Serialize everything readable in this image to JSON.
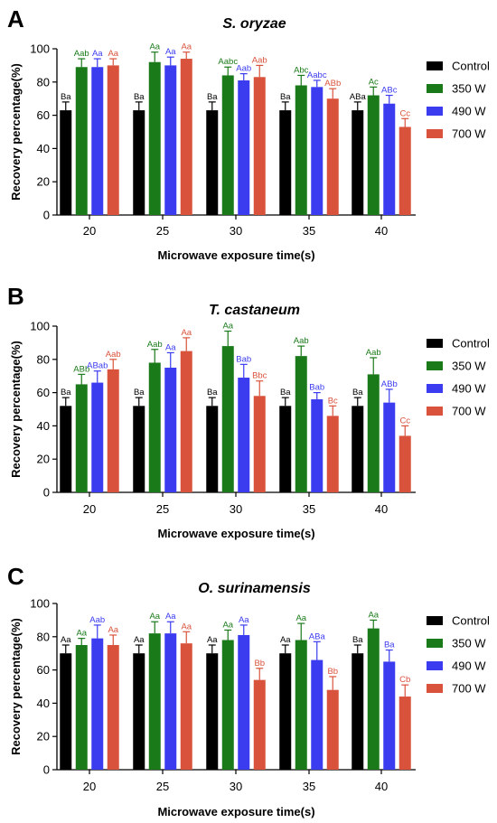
{
  "chart_data": [
    {
      "panel": "A",
      "type": "bar",
      "title": "S. oryzae",
      "xlabel": "Microwave exposure time(s)",
      "ylabel": "Recovery percentage(%)",
      "ylim": [
        0,
        100
      ],
      "yticks": [
        0,
        20,
        40,
        60,
        80,
        100
      ],
      "categories": [
        "20",
        "25",
        "30",
        "35",
        "40"
      ],
      "legend_position": "right",
      "series": [
        {
          "name": "Control",
          "color": "#000000",
          "values": [
            63,
            63,
            63,
            63,
            63
          ],
          "errors": [
            5,
            5,
            5,
            5,
            5
          ],
          "labels": [
            "Ba",
            "Ba",
            "Ba",
            "Ba",
            "ABa"
          ]
        },
        {
          "name": "350 W",
          "color": "#1a7a1a",
          "values": [
            89,
            92,
            84,
            78,
            72
          ],
          "errors": [
            5,
            6,
            5,
            6,
            5
          ],
          "labels": [
            "Aab",
            "Aa",
            "Aabc",
            "Abc",
            "Ac"
          ]
        },
        {
          "name": "490 W",
          "color": "#3b3bf0",
          "values": [
            89,
            90,
            81,
            77,
            67
          ],
          "errors": [
            5,
            5,
            4,
            4,
            5
          ],
          "labels": [
            "Aa",
            "Aa",
            "Aab",
            "Aabc",
            "ABc"
          ]
        },
        {
          "name": "700 W",
          "color": "#d9533c",
          "values": [
            90,
            94,
            83,
            70,
            53
          ],
          "errors": [
            4,
            4,
            7,
            6,
            5
          ],
          "labels": [
            "Aa",
            "Aa",
            "Aab",
            "ABb",
            "Cc"
          ]
        }
      ]
    },
    {
      "panel": "B",
      "type": "bar",
      "title": "T. castaneum",
      "xlabel": "Microwave exposure time(s)",
      "ylabel": "Recovery percentage(%)",
      "ylim": [
        0,
        100
      ],
      "yticks": [
        0,
        20,
        40,
        60,
        80,
        100
      ],
      "categories": [
        "20",
        "25",
        "30",
        "35",
        "40"
      ],
      "legend_position": "right",
      "series": [
        {
          "name": "Control",
          "color": "#000000",
          "values": [
            52,
            52,
            52,
            52,
            52
          ],
          "errors": [
            5,
            5,
            5,
            5,
            5
          ],
          "labels": [
            "Ba",
            "Ba",
            "Ba",
            "Ba",
            "Ba"
          ]
        },
        {
          "name": "350 W",
          "color": "#1a7a1a",
          "values": [
            65,
            78,
            88,
            82,
            71
          ],
          "errors": [
            6,
            8,
            9,
            6,
            10
          ],
          "labels": [
            "ABb",
            "Aab",
            "Aa",
            "Aab",
            "Aab"
          ]
        },
        {
          "name": "490 W",
          "color": "#3b3bf0",
          "values": [
            66,
            75,
            69,
            56,
            54
          ],
          "errors": [
            7,
            9,
            8,
            4,
            8
          ],
          "labels": [
            "ABab",
            "Aa",
            "Bab",
            "Bab",
            "ABb"
          ]
        },
        {
          "name": "700 W",
          "color": "#d9533c",
          "values": [
            74,
            85,
            58,
            46,
            34
          ],
          "errors": [
            6,
            8,
            9,
            6,
            6
          ],
          "labels": [
            "Aab",
            "Aa",
            "Bbc",
            "Bc",
            "Cc"
          ]
        }
      ]
    },
    {
      "panel": "C",
      "type": "bar",
      "title": "O. surinamensis",
      "xlabel": "Microwave exposure time(s)",
      "ylabel": "Recovery percentage(%)",
      "ylim": [
        0,
        100
      ],
      "yticks": [
        0,
        20,
        40,
        60,
        80,
        100
      ],
      "categories": [
        "20",
        "25",
        "30",
        "35",
        "40"
      ],
      "legend_position": "right",
      "series": [
        {
          "name": "Control",
          "color": "#000000",
          "values": [
            70,
            70,
            70,
            70,
            70
          ],
          "errors": [
            5,
            5,
            5,
            5,
            5
          ],
          "labels": [
            "Aa",
            "Aa",
            "Aa",
            "Aa",
            "Ba"
          ]
        },
        {
          "name": "350 W",
          "color": "#1a7a1a",
          "values": [
            75,
            82,
            78,
            78,
            85
          ],
          "errors": [
            4,
            7,
            6,
            10,
            5
          ],
          "labels": [
            "Aa",
            "Aa",
            "Aa",
            "Aa",
            "Aa"
          ]
        },
        {
          "name": "490 W",
          "color": "#3b3bf0",
          "values": [
            79,
            82,
            81,
            66,
            65
          ],
          "errors": [
            8,
            7,
            6,
            11,
            7
          ],
          "labels": [
            "Aab",
            "Aa",
            "Aa",
            "ABa",
            "Ba"
          ]
        },
        {
          "name": "700 W",
          "color": "#d9533c",
          "values": [
            75,
            76,
            54,
            48,
            44
          ],
          "errors": [
            6,
            7,
            7,
            8,
            7
          ],
          "labels": [
            "Aa",
            "Aa",
            "Bb",
            "Bb",
            "Cb"
          ]
        }
      ]
    }
  ]
}
